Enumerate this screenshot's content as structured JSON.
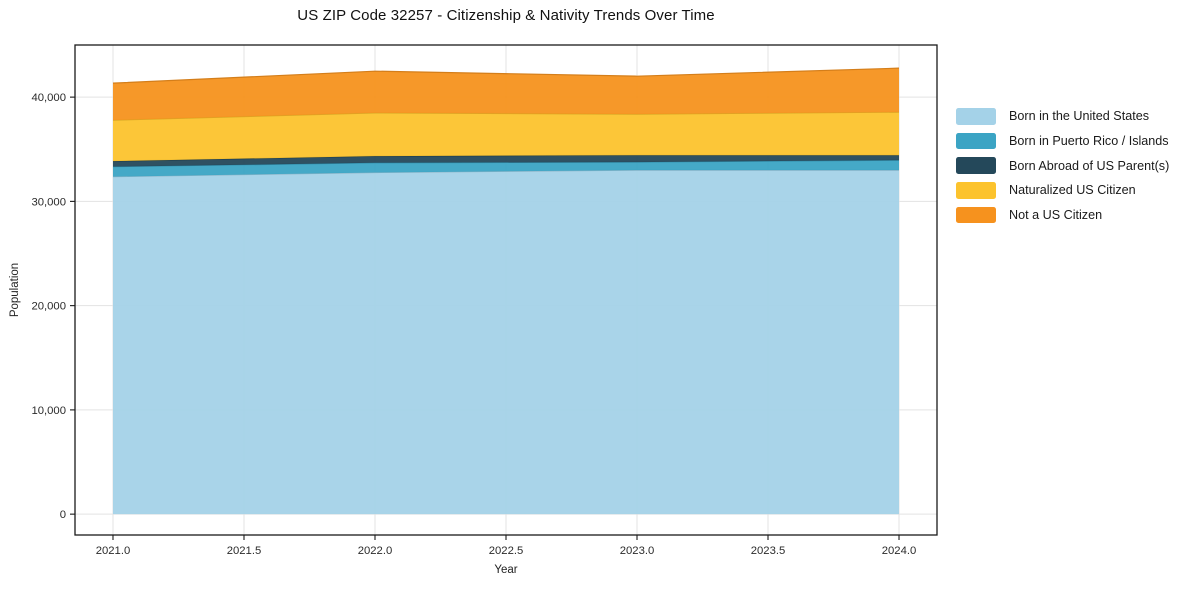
{
  "chart": {
    "title": "US ZIP Code 32257 - Citizenship & Nativity Trends Over Time"
  },
  "chart_data": {
    "type": "area",
    "stacked": true,
    "title": "US ZIP Code 32257 - Citizenship & Nativity Trends Over Time",
    "xlabel": "Year",
    "ylabel": "Population",
    "x": [
      2021,
      2022,
      2023,
      2024
    ],
    "series": [
      {
        "name": "Born in the United States",
        "color": "#a4d2e8",
        "values": [
          32370,
          32770,
          33000,
          33000
        ]
      },
      {
        "name": "Born in Puerto Rico / Islands",
        "color": "#3ba4c4",
        "values": [
          960,
          930,
          770,
          950
        ]
      },
      {
        "name": "Born Abroad of US Parent(s)",
        "color": "#24485a",
        "values": [
          530,
          640,
          660,
          480
        ]
      },
      {
        "name": "Naturalized US Citizen",
        "color": "#fcc32d",
        "values": [
          3930,
          4150,
          3940,
          4130
        ]
      },
      {
        "name": "Not a US Citizen",
        "color": "#f6921e",
        "values": [
          3550,
          4000,
          3640,
          4220
        ]
      }
    ],
    "totals": [
      41340,
      42490,
      42010,
      42780
    ],
    "xlim": [
      2020.855,
      2024.145
    ],
    "ylim": [
      -2000,
      45000
    ],
    "xticks": {
      "values": [
        2021.0,
        2021.5,
        2022.0,
        2022.5,
        2023.0,
        2023.5,
        2024.0
      ],
      "labels": [
        "2021.0",
        "2021.5",
        "2022.0",
        "2022.5",
        "2023.0",
        "2023.5",
        "2024.0"
      ]
    },
    "yticks": {
      "values": [
        0,
        10000,
        20000,
        30000,
        40000
      ],
      "labels": [
        "0",
        "10,000",
        "20,000",
        "30,000",
        "40,000"
      ]
    },
    "grid": true,
    "grid_color": "#e3e3e3",
    "spine_color": "#1a1a1a",
    "legend_position": "right"
  }
}
